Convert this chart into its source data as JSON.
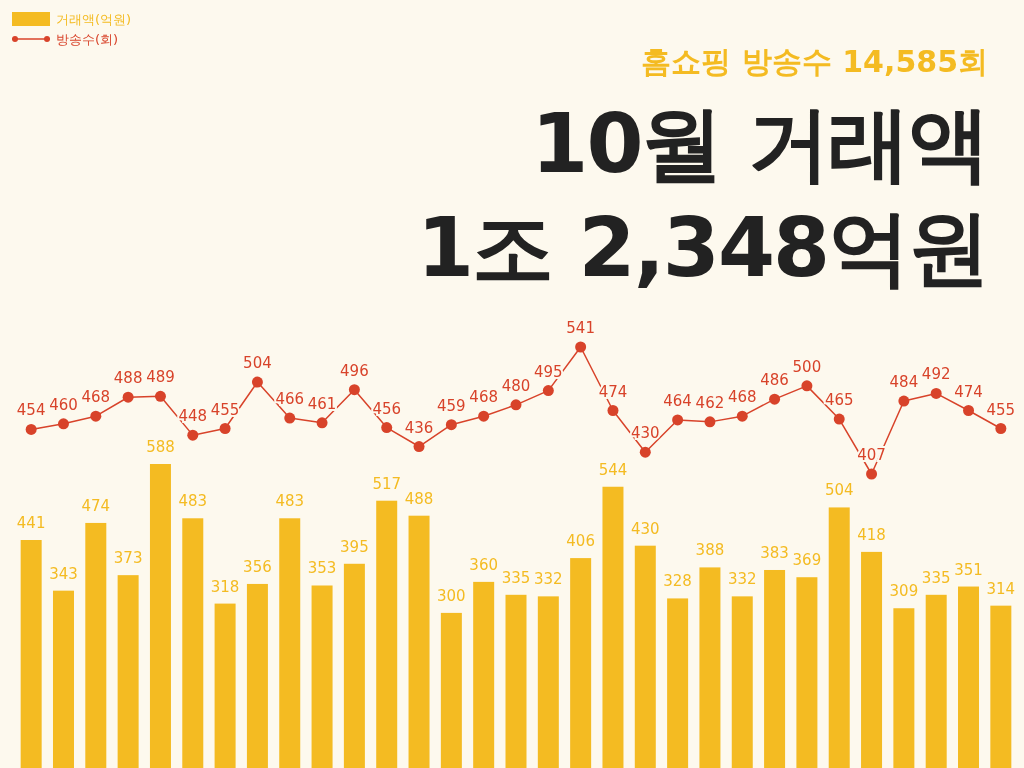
{
  "chart_data": [
    {
      "type": "bar",
      "title": "10월 거래액\n1조 2,348억원",
      "subtitle": "홈쇼핑 방송수 14,585회",
      "categories": [
        null,
        null,
        null,
        null,
        null,
        null,
        null,
        null,
        null,
        null,
        null,
        null,
        null,
        null,
        null,
        null,
        null,
        null,
        null,
        null,
        null,
        null,
        null,
        null,
        null,
        null,
        null,
        null,
        null,
        null,
        null
      ],
      "data_labels": true,
      "legend": "top left",
      "series": [
        {
          "name": "거래액(억원)",
          "color": "#f4bb22",
          "values": [
            441,
            343,
            474,
            373,
            588,
            483,
            318,
            356,
            483,
            353,
            395,
            517,
            488,
            300,
            360,
            335,
            332,
            406,
            544,
            430,
            328,
            388,
            332,
            383,
            369,
            504,
            418,
            309,
            335,
            351,
            314
          ]
        }
      ]
    },
    {
      "type": "line",
      "categories": [
        null,
        null,
        null,
        null,
        null,
        null,
        null,
        null,
        null,
        null,
        null,
        null,
        null,
        null,
        null,
        null,
        null,
        null,
        null,
        null,
        null,
        null,
        null,
        null,
        null,
        null,
        null,
        null,
        null,
        null,
        null
      ],
      "data_labels": true,
      "legend": "top left",
      "marker": "circle",
      "series": [
        {
          "name": "방송수(회)",
          "color": "#d8432a",
          "values": [
            454,
            460,
            468,
            488,
            489,
            448,
            455,
            504,
            466,
            461,
            496,
            456,
            436,
            459,
            468,
            480,
            495,
            541,
            474,
            430,
            464,
            462,
            468,
            486,
            500,
            465,
            407,
            484,
            492,
            474,
            455
          ]
        }
      ]
    }
  ]
}
